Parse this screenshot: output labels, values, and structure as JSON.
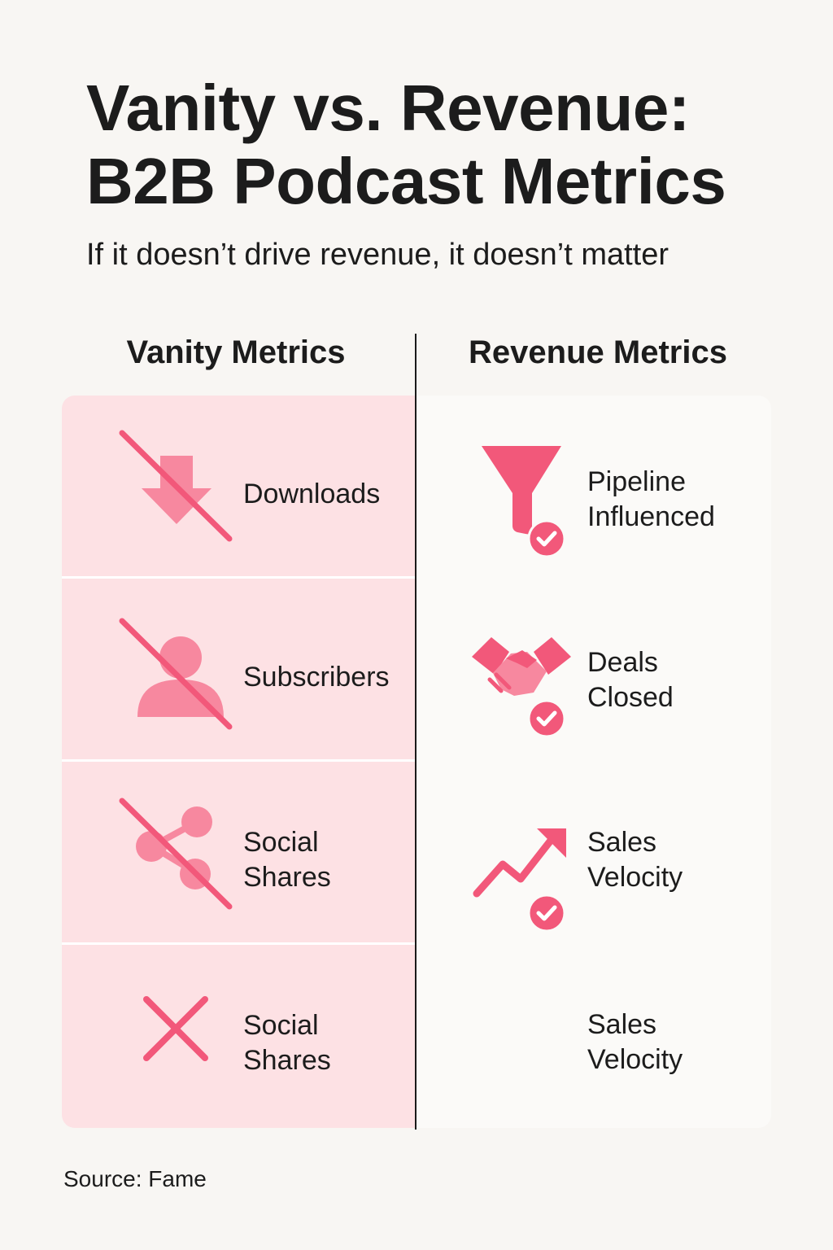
{
  "title_line1": "Vanity vs. Revenue:",
  "title_line2": "B2B Podcast Metrics",
  "subtitle": "If it doesn’t drive revenue, it doesn’t matter",
  "columns": {
    "vanity_heading": "Vanity Metrics",
    "revenue_heading": "Revenue Metrics"
  },
  "vanity_items": [
    {
      "label": "Downloads",
      "icon": "download-arrow-icon"
    },
    {
      "label": "Subscribers",
      "icon": "person-icon"
    },
    {
      "label_line1": "Social",
      "label_line2": "Shares",
      "icon": "share-icon"
    },
    {
      "label_line1": "Social",
      "label_line2": "Shares",
      "icon": "x-cross-icon"
    }
  ],
  "revenue_items": [
    {
      "label_line1": "Pipeline",
      "label_line2": "Influenced",
      "icon": "funnel-check-icon"
    },
    {
      "label_line1": "Deals",
      "label_line2": "Closed",
      "icon": "handshake-check-icon"
    },
    {
      "label_line1": "Sales",
      "label_line2": "Velocity",
      "icon": "trend-arrow-check-icon"
    },
    {
      "label_line1": "Sales",
      "label_line2": "Velocity"
    }
  ],
  "source": "Source: Fame",
  "colors": {
    "accent": "#f2587a",
    "icon_light": "#f7889f",
    "vanity_bg": "#fde1e4",
    "revenue_bg": "#fbfaf8",
    "page_bg": "#f8f6f3"
  }
}
